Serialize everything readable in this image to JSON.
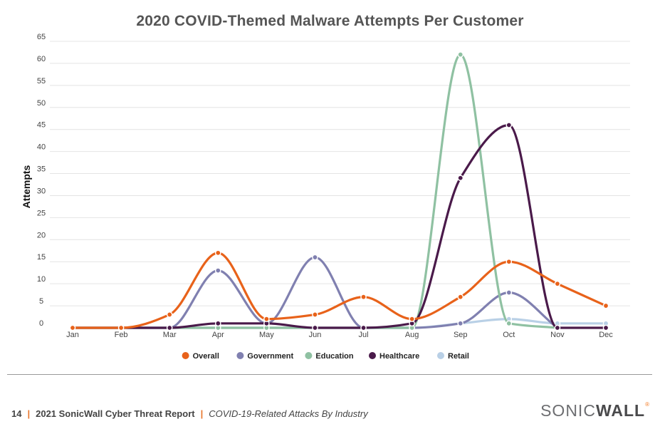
{
  "chart_data": {
    "type": "line",
    "title": "2020 COVID-Themed Malware Attempts Per Customer",
    "ylabel": "Attempts",
    "xlabel": "",
    "ylim": [
      0,
      65
    ],
    "yticks": [
      0,
      5,
      10,
      15,
      20,
      25,
      30,
      35,
      40,
      45,
      50,
      55,
      60,
      65
    ],
    "grid": true,
    "legend_position": "bottom",
    "categories": [
      "Jan",
      "Feb",
      "Mar",
      "Apr",
      "May",
      "Jun",
      "Jul",
      "Aug",
      "Sep",
      "Oct",
      "Nov",
      "Dec"
    ],
    "series": [
      {
        "name": "Overall",
        "color": "#e8621a",
        "values": [
          0,
          0,
          3,
          17,
          2,
          3,
          7,
          2,
          7,
          15,
          10,
          5
        ]
      },
      {
        "name": "Government",
        "color": "#8080b0",
        "values": [
          0,
          0,
          0,
          13,
          1,
          16,
          0,
          0,
          1,
          8,
          0,
          null
        ]
      },
      {
        "name": "Education",
        "color": "#8fc1a2",
        "values": [
          0,
          0,
          0,
          0,
          0,
          0,
          0,
          0,
          62,
          1,
          0,
          null
        ]
      },
      {
        "name": "Healthcare",
        "color": "#4a1a4a",
        "values": [
          0,
          0,
          0,
          1,
          1,
          0,
          0,
          1,
          34,
          46,
          0,
          0
        ]
      },
      {
        "name": "Retail",
        "color": "#b9d0e6",
        "values": [
          0,
          0,
          0,
          0,
          0,
          0,
          0,
          0,
          1,
          2,
          1,
          1
        ]
      }
    ]
  },
  "footer": {
    "page_number": "14",
    "report_title": "2021 SonicWall Cyber Threat Report",
    "section_title": "COVID-19-Related Attacks By Industry"
  },
  "logo": {
    "text_light": "SONIC",
    "text_bold": "WALL",
    "reg_mark": "®"
  }
}
